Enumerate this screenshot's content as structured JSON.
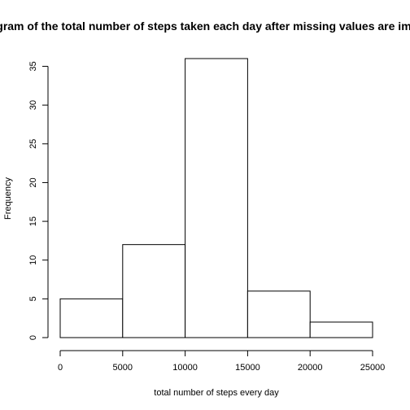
{
  "chart_data": {
    "type": "bar",
    "title": "Histogram of the total number of steps taken each day after missing values are imputed",
    "xlabel": "total number of steps every day",
    "ylabel": "Frequency",
    "bins": [
      [
        0,
        5000
      ],
      [
        5000,
        10000
      ],
      [
        10000,
        15000
      ],
      [
        15000,
        20000
      ],
      [
        20000,
        25000
      ]
    ],
    "categories": [
      "0-5000",
      "5000-10000",
      "10000-15000",
      "15000-20000",
      "20000-25000"
    ],
    "values": [
      5,
      12,
      36,
      6,
      2
    ],
    "xlim": [
      0,
      25000
    ],
    "ylim": [
      0,
      36
    ],
    "xticks": [
      0,
      5000,
      10000,
      15000,
      20000,
      25000
    ],
    "yticks": [
      0,
      5,
      10,
      15,
      20,
      25,
      30,
      35
    ],
    "grid": false,
    "bar_fill": "#ffffff",
    "bar_stroke": "#000000"
  }
}
